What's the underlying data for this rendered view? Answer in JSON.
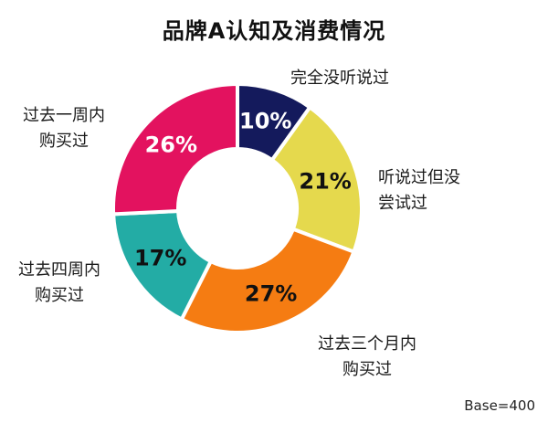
{
  "chart_data": {
    "type": "pie",
    "title": "品牌A认知及消费情况",
    "categories": [
      {
        "label_lines": [
          "完全没听说过"
        ],
        "value": 10,
        "value_label": "10%",
        "color": "#141a5c",
        "value_text_color": "#ffffff"
      },
      {
        "label_lines": [
          "听说过但没",
          "尝试过"
        ],
        "value": 21,
        "value_label": "21%",
        "color": "#e5d94d",
        "value_text_color": "#111111"
      },
      {
        "label_lines": [
          "过去三个月内",
          "购买过"
        ],
        "value": 27,
        "value_label": "27%",
        "color": "#f57c12",
        "value_text_color": "#111111"
      },
      {
        "label_lines": [
          "过去四周内",
          "购买过"
        ],
        "value": 17,
        "value_label": "17%",
        "color": "#23aca5",
        "value_text_color": "#111111"
      },
      {
        "label_lines": [
          "过去一周内",
          "购买过"
        ],
        "value": 26,
        "value_label": "26%",
        "color": "#e3125f",
        "value_text_color": "#ffffff"
      }
    ],
    "donut": true,
    "start": "12 o'clock",
    "direction": "clockwise"
  },
  "footnote": "Base=400"
}
